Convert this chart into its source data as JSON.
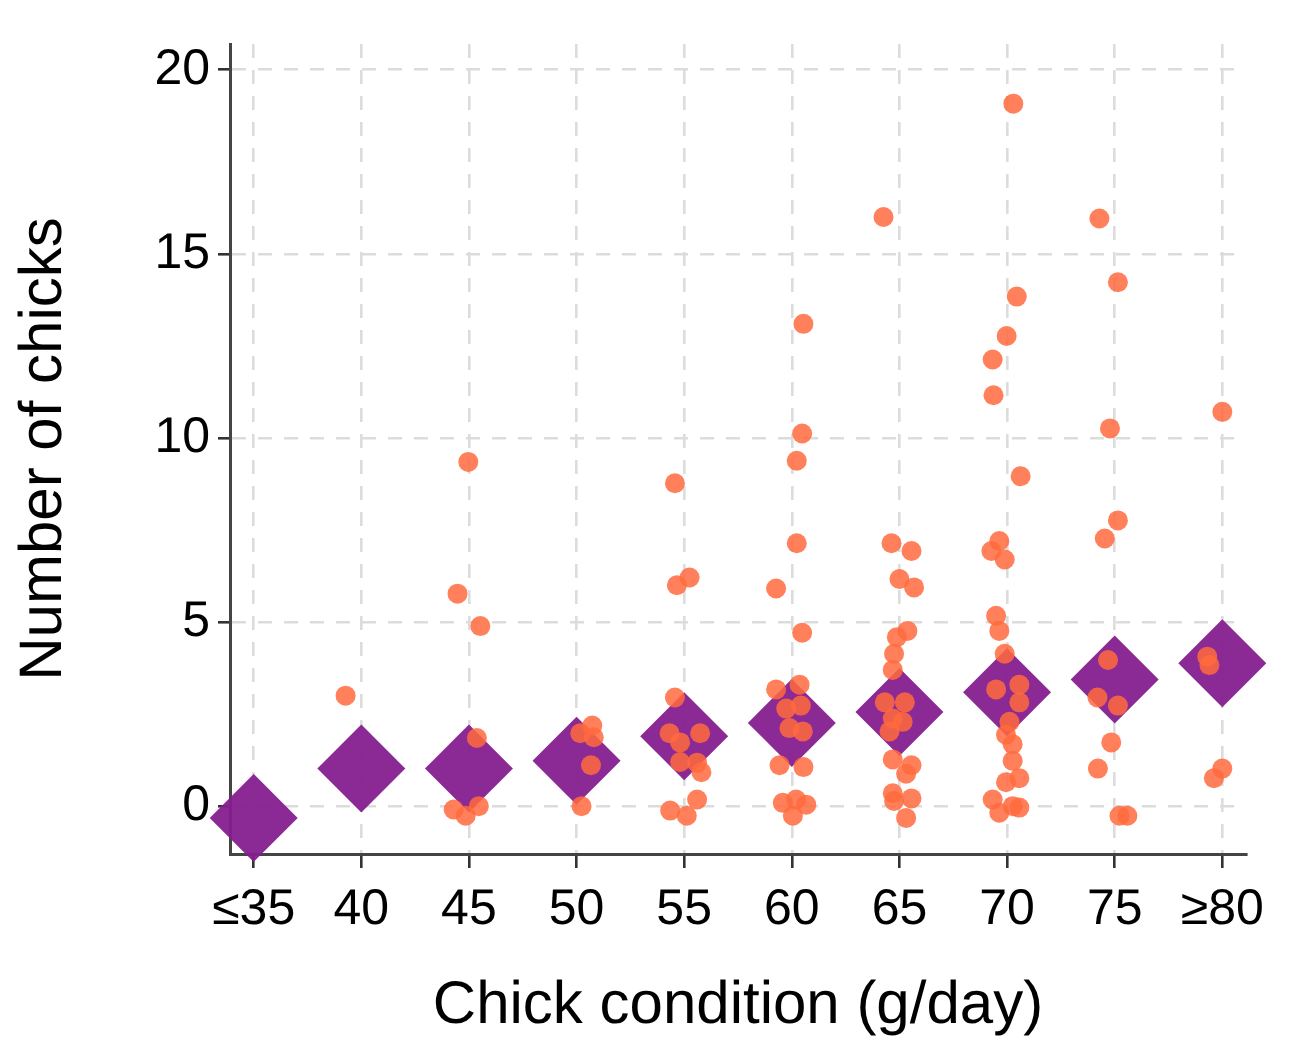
{
  "chart_data": {
    "type": "scatter",
    "xlabel": "Chick condition (g/day)",
    "ylabel": "Number of chicks",
    "xlim": [
      33.9,
      81.1
    ],
    "ylim": [
      -1.3,
      20.7
    ],
    "xticks": [
      {
        "value": 35,
        "label": "≤35"
      },
      40,
      45,
      50,
      55,
      60,
      65,
      70,
      75,
      {
        "value": 80,
        "label": "≥80"
      }
    ],
    "yticks": [
      0,
      5,
      10,
      15,
      20
    ],
    "grid": true,
    "legend": false,
    "series": [
      {
        "marker": "circle",
        "color": "#ff6a3d",
        "x": [
          39.27,
          44.97,
          44.47,
          45.53,
          45.37,
          44.29,
          44.85,
          45.46,
          50.23,
          50.67,
          50.17,
          50.73,
          50.8,
          54.57,
          54.66,
          55.25,
          54.57,
          54.32,
          54.81,
          55.74,
          54.81,
          55.6,
          55.8,
          54.35,
          55.12,
          55.6,
          60.54,
          60.48,
          60.23,
          60.23,
          59.27,
          60.48,
          60.36,
          59.27,
          59.74,
          60.42,
          59.89,
          60.51,
          59.43,
          60.54,
          59.58,
          60.2,
          60.67,
          60.05,
          64.26,
          64.63,
          65.56,
          65.0,
          65.68,
          65.37,
          64.88,
          64.75,
          64.69,
          64.32,
          65.25,
          64.69,
          65.15,
          64.54,
          64.69,
          65.56,
          65.31,
          64.69,
          65.56,
          64.75,
          65.31,
          70.29,
          70.45,
          69.98,
          69.33,
          69.37,
          70.63,
          69.64,
          69.27,
          69.89,
          69.49,
          69.64,
          69.89,
          70.57,
          69.49,
          70.57,
          70.11,
          69.95,
          70.26,
          70.26,
          69.95,
          70.57,
          69.33,
          69.64,
          70.26,
          70.57,
          74.29,
          75.15,
          74.78,
          75.15,
          74.54,
          74.69,
          74.2,
          75.15,
          74.84,
          74.22,
          75.22,
          75.59,
          80.0,
          79.3,
          79.4,
          79.61,
          80.0
        ],
        "values": [
          3.0,
          9.35,
          5.77,
          4.89,
          1.85,
          -0.09,
          -0.26,
          0,
          0,
          1.11,
          1.98,
          2.19,
          1.87,
          8.77,
          6.0,
          6.21,
          2.95,
          1.98,
          1.73,
          1.98,
          1.2,
          1.18,
          0.92,
          -0.12,
          -0.26,
          0.18,
          13.1,
          10.12,
          9.38,
          7.14,
          5.91,
          4.71,
          3.3,
          3.17,
          2.65,
          2.73,
          2.12,
          2.03,
          1.11,
          1.06,
          0.09,
          0.18,
          0.04,
          -0.26,
          16.0,
          7.14,
          6.93,
          6.17,
          5.94,
          4.76,
          4.59,
          4.14,
          3.7,
          2.82,
          2.82,
          2.38,
          2.29,
          2.03,
          1.27,
          1.11,
          0.88,
          0.35,
          0.21,
          0.14,
          -0.32,
          19.08,
          13.84,
          12.77,
          12.13,
          11.16,
          8.96,
          7.2,
          6.93,
          6.7,
          5.17,
          4.76,
          4.14,
          3.3,
          3.17,
          2.82,
          2.29,
          1.94,
          1.68,
          1.23,
          0.65,
          0.76,
          0.18,
          -0.18,
          0,
          -0.04,
          15.96,
          14.23,
          10.26,
          7.76,
          7.27,
          3.97,
          2.95,
          2.73,
          1.73,
          1.02,
          -0.26,
          -0.26,
          10.71,
          4.06,
          3.83,
          0.76,
          1.02
        ]
      },
      {
        "marker": "diamond",
        "color": "#861f8f",
        "x": [
          35,
          40,
          45,
          50,
          55,
          60,
          65,
          70,
          75,
          80
        ],
        "values": [
          -0.32,
          1.02,
          1.02,
          1.23,
          1.9,
          2.26,
          2.56,
          3.09,
          3.44,
          3.88
        ]
      }
    ]
  }
}
